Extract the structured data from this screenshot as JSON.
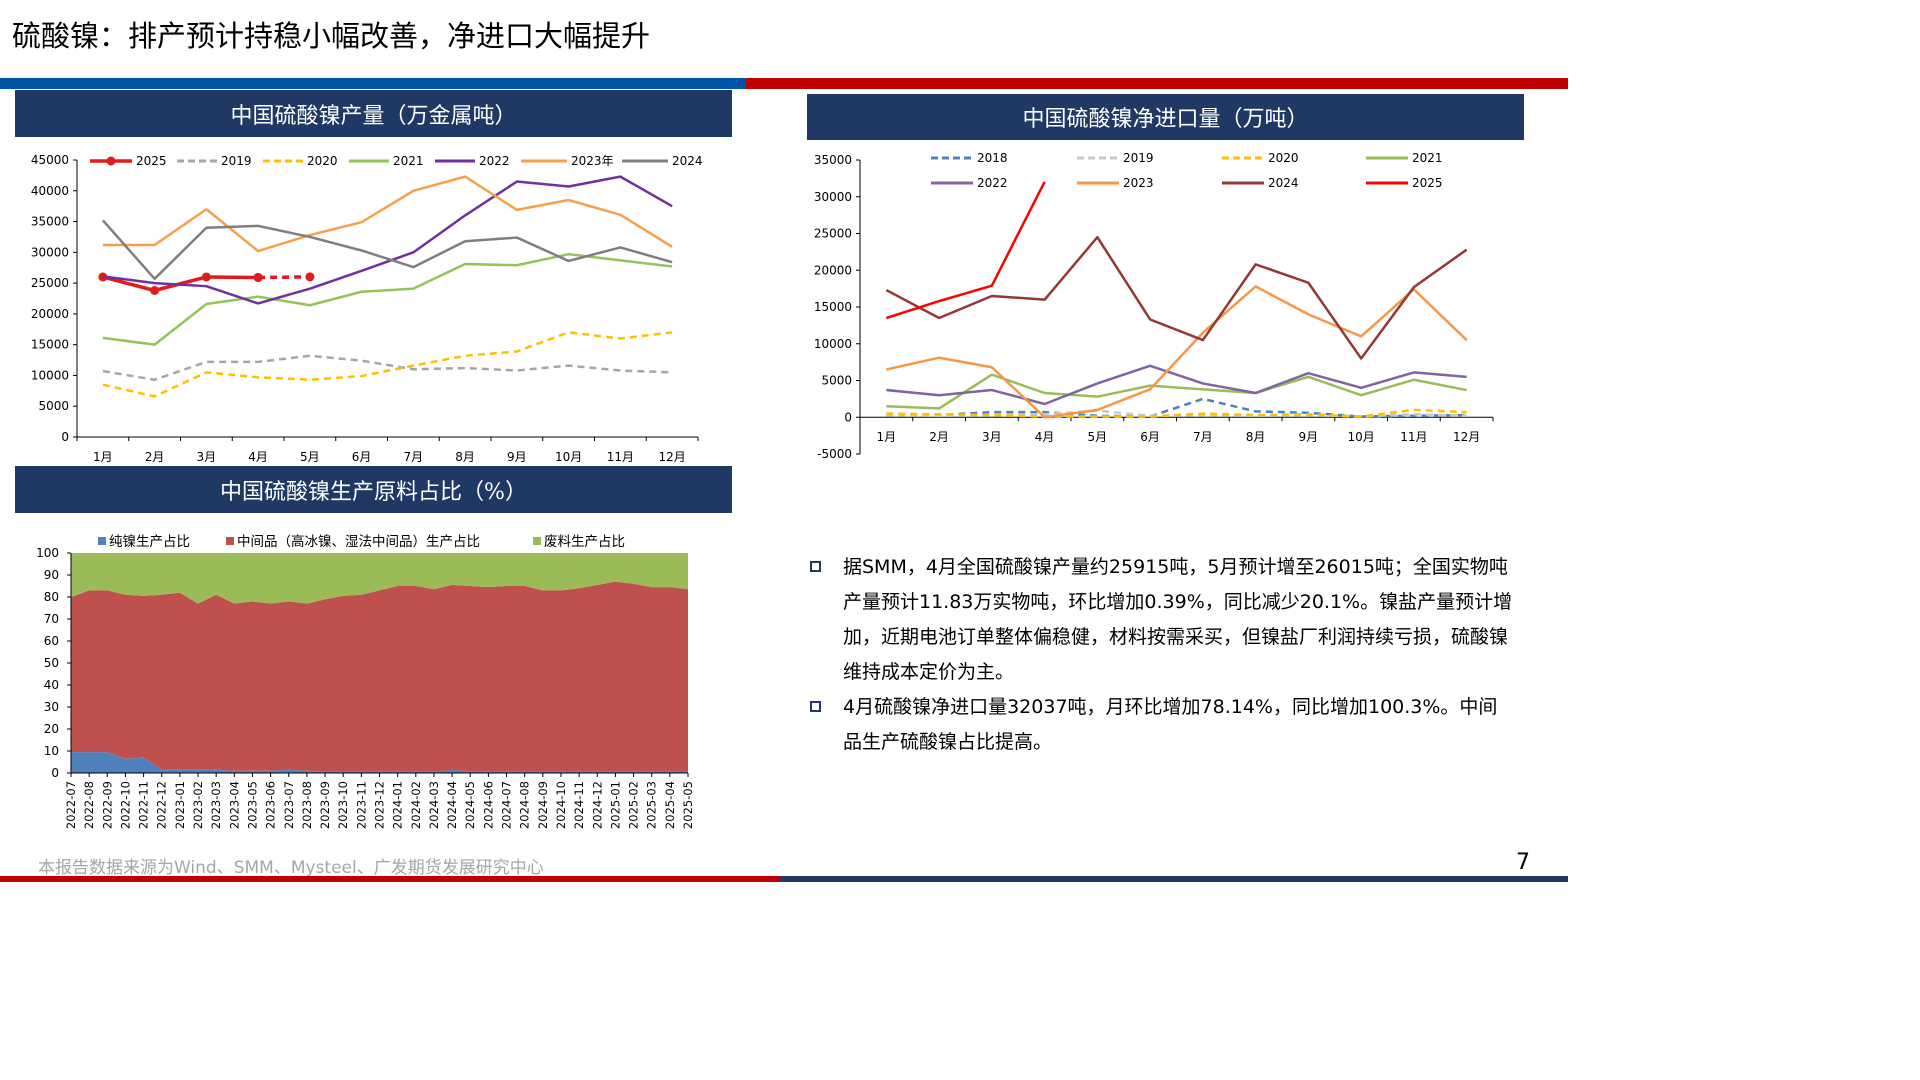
{
  "page": {
    "title": "硫酸镍：排产预计持稳小幅改善，净进口大幅提升",
    "source_note": "本报告数据来源为Wind、SMM、Mysteel、广发期货发展研究中心",
    "page_number": "7"
  },
  "colors": {
    "navy": "#1f3864",
    "red": "#c00000",
    "blue": "#0054a6"
  },
  "bullets": [
    "据SMM，4月全国硫酸镍产量约25915吨，5月预计增至26015吨；全国实物吨产量预计11.83万实物吨，环比增加0.39%，同比减少20.1%。镍盐产量预计增加，近期电池订单整体偏稳健，材料按需采买，但镍盐厂利润持续亏损，硫酸镍维持成本定价为主。",
    "4月硫酸镍净进口量32037吨，月环比增加78.14%，同比增加100.3%。中间品生产硫酸镍占比提高。"
  ],
  "chart_data": [
    {
      "id": "production",
      "type": "line",
      "title": "中国硫酸镍产量（万金属吨）",
      "categories": [
        "1月",
        "2月",
        "3月",
        "4月",
        "5月",
        "6月",
        "7月",
        "8月",
        "9月",
        "10月",
        "11月",
        "12月"
      ],
      "ylim": [
        0,
        45000
      ],
      "yticks": [
        0,
        5000,
        10000,
        15000,
        20000,
        25000,
        30000,
        35000,
        40000,
        45000
      ],
      "legend_position": "top",
      "series": [
        {
          "name": "2025",
          "color": "#e31a1c",
          "style": "solid-marker",
          "values": [
            26000,
            23800,
            26000,
            25915,
            null,
            null,
            null,
            null,
            null,
            null,
            null,
            null
          ]
        },
        {
          "name": "2025",
          "color": "#e31a1c",
          "style": "dash-marker",
          "legend": false,
          "values": [
            null,
            null,
            null,
            25915,
            26015,
            null,
            null,
            null,
            null,
            null,
            null,
            null
          ]
        },
        {
          "name": "2019",
          "color": "#a6a6a6",
          "style": "dash",
          "values": [
            10700,
            9300,
            12200,
            12200,
            13200,
            12400,
            11000,
            11200,
            10800,
            11600,
            10800,
            10500
          ]
        },
        {
          "name": "2020",
          "color": "#ffc000",
          "style": "dash",
          "values": [
            8500,
            6600,
            10500,
            9700,
            9300,
            9900,
            11600,
            13200,
            13900,
            17000,
            16000,
            17000
          ]
        },
        {
          "name": "2021",
          "color": "#92c45a",
          "style": "solid",
          "values": [
            16100,
            15000,
            21600,
            22800,
            21400,
            23600,
            24100,
            28100,
            27900,
            29700,
            28700,
            27700
          ]
        },
        {
          "name": "2022",
          "color": "#7030a0",
          "style": "solid",
          "values": [
            26100,
            25000,
            24500,
            21700,
            24100,
            27000,
            30000,
            36000,
            41500,
            40700,
            42300,
            37500
          ]
        },
        {
          "name": "2023年",
          "color": "#f4a14b",
          "style": "solid",
          "values": [
            31200,
            31200,
            37000,
            30200,
            32800,
            34900,
            40000,
            42300,
            36900,
            38500,
            36100,
            30900
          ]
        },
        {
          "name": "2024",
          "color": "#7f7f7f",
          "style": "solid",
          "values": [
            35200,
            25700,
            34000,
            34300,
            32500,
            30300,
            27600,
            31800,
            32400,
            28600,
            30800,
            28400
          ]
        }
      ]
    },
    {
      "id": "net-import",
      "type": "line",
      "title": "中国硫酸镍净进口量（万吨）",
      "categories": [
        "1月",
        "2月",
        "3月",
        "4月",
        "5月",
        "6月",
        "7月",
        "8月",
        "9月",
        "10月",
        "11月",
        "12月"
      ],
      "ylim": [
        -5000,
        35000
      ],
      "yticks": [
        -5000,
        0,
        5000,
        10000,
        15000,
        20000,
        25000,
        30000,
        35000
      ],
      "legend_position": "top",
      "series": [
        {
          "name": "2018",
          "color": "#4f81bd",
          "style": "dash",
          "values": [
            300,
            300,
            700,
            700,
            200,
            100,
            2500,
            800,
            600,
            100,
            200,
            300
          ]
        },
        {
          "name": "2019",
          "color": "#c8c8c8",
          "style": "dash",
          "values": [
            300,
            200,
            300,
            400,
            900,
            200,
            300,
            200,
            300,
            100,
            400,
            200
          ]
        },
        {
          "name": "2020",
          "color": "#ffc000",
          "style": "dash",
          "values": [
            500,
            400,
            300,
            100,
            100,
            100,
            500,
            300,
            400,
            100,
            1000,
            700
          ]
        },
        {
          "name": "2021",
          "color": "#9bbb59",
          "style": "solid",
          "values": [
            1500,
            1200,
            5800,
            3300,
            2800,
            4300,
            3800,
            3300,
            5500,
            3000,
            5100,
            3700
          ]
        },
        {
          "name": "2022",
          "color": "#8064a2",
          "style": "solid",
          "values": [
            3700,
            3000,
            3700,
            1800,
            4600,
            7000,
            4600,
            3300,
            6000,
            4000,
            6100,
            5500
          ]
        },
        {
          "name": "2023",
          "color": "#f79646",
          "style": "solid",
          "values": [
            6500,
            8100,
            6800,
            0,
            1000,
            3800,
            11500,
            17800,
            14000,
            11000,
            17400,
            10500
          ]
        },
        {
          "name": "2024",
          "color": "#953735",
          "style": "solid",
          "values": [
            17300,
            13500,
            16500,
            16000,
            24500,
            13300,
            10500,
            20800,
            18300,
            8000,
            17700,
            22800
          ]
        },
        {
          "name": "2025",
          "color": "#ff0000",
          "style": "solid",
          "values": [
            13500,
            15800,
            17900,
            32037,
            null,
            null,
            null,
            null,
            null,
            null,
            null,
            null
          ]
        }
      ]
    },
    {
      "id": "feedstock-share",
      "type": "area",
      "stacked": true,
      "title": "中国硫酸镍生产原料占比（%）",
      "ylim": [
        0,
        100
      ],
      "yticks": [
        0,
        10,
        20,
        30,
        40,
        50,
        60,
        70,
        80,
        90,
        100
      ],
      "legend_position": "top",
      "categories": [
        "2022-07",
        "2022-08",
        "2022-09",
        "2022-10",
        "2022-11",
        "2022-12",
        "2023-01",
        "2023-02",
        "2023-03",
        "2023-04",
        "2023-05",
        "2023-06",
        "2023-07",
        "2023-08",
        "2023-09",
        "2023-10",
        "2023-11",
        "2023-12",
        "2024-01",
        "2024-02",
        "2024-03",
        "2024-04",
        "2024-05",
        "2024-06",
        "2024-07",
        "2024-08",
        "2024-09",
        "2024-10",
        "2024-11",
        "2024-12",
        "2025-01",
        "2025-02",
        "2025-03",
        "2025-04",
        "2025-05"
      ],
      "series": [
        {
          "name": "纯镍生产占比",
          "color": "#4f81bd",
          "values": [
            9.5,
            9.5,
            9.5,
            6.5,
            7,
            1.5,
            1.5,
            1.5,
            1.5,
            1,
            1,
            1,
            1.5,
            1,
            0.5,
            0.5,
            0.5,
            0.5,
            0.5,
            0.5,
            0.5,
            1.5,
            0.5,
            0.5,
            0.5,
            0.5,
            0.5,
            0.5,
            0.5,
            0.5,
            0.5,
            0.5,
            0.5,
            0.5,
            0.5
          ]
        },
        {
          "name": "中间品（高冰镍、湿法中间品）生产占比",
          "color": "#c0504d",
          "values": [
            70.5,
            73.5,
            73.5,
            74.5,
            73.5,
            79.5,
            80.5,
            75.5,
            79.5,
            76,
            77,
            76,
            76.5,
            76,
            78.5,
            80,
            80.5,
            82.5,
            84.5,
            84.5,
            83,
            84,
            84.5,
            84,
            84.5,
            84.5,
            82.5,
            82.5,
            83.5,
            85,
            86.5,
            85.5,
            84,
            84,
            83
          ]
        },
        {
          "name": "废料生产占比",
          "color": "#9bbb59",
          "values": [
            20,
            17,
            17,
            19,
            19.5,
            19,
            18,
            23,
            19,
            23,
            22,
            23,
            22,
            23,
            21,
            19.5,
            19,
            17,
            15,
            15,
            16.5,
            14.5,
            15,
            15.5,
            15,
            15,
            17,
            17,
            16,
            14.5,
            13,
            14,
            15.5,
            15.5,
            16.5
          ]
        }
      ]
    }
  ]
}
